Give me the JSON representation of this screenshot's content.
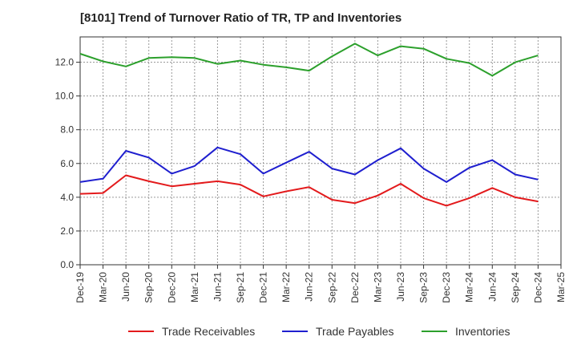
{
  "chart_data": {
    "type": "line",
    "title": "[8101]  Trend of Turnover Ratio of TR, TP and Inventories",
    "xlabel": "",
    "ylabel": "",
    "ylim": [
      0,
      13.5
    ],
    "yticks": [
      "0.0",
      "2.0",
      "4.0",
      "6.0",
      "8.0",
      "10.0",
      "12.0"
    ],
    "ytick_values": [
      0,
      2,
      4,
      6,
      8,
      10,
      12
    ],
    "categories": [
      "Dec-19",
      "Mar-20",
      "Jun-20",
      "Sep-20",
      "Dec-20",
      "Mar-21",
      "Jun-21",
      "Sep-21",
      "Dec-21",
      "Mar-22",
      "Jun-22",
      "Sep-22",
      "Dec-22",
      "Mar-23",
      "Jun-23",
      "Sep-23",
      "Dec-23",
      "Mar-24",
      "Jun-24",
      "Sep-24",
      "Dec-24",
      "Mar-25"
    ],
    "grid": true,
    "legend_position": "bottom",
    "series": [
      {
        "name": "Trade Receivables",
        "color": "#e31a1c",
        "values": [
          4.2,
          4.25,
          5.3,
          4.95,
          4.65,
          4.8,
          4.95,
          4.75,
          4.05,
          4.35,
          4.6,
          3.85,
          3.65,
          4.1,
          4.8,
          3.95,
          3.5,
          3.95,
          4.55,
          4.0,
          3.75,
          null
        ]
      },
      {
        "name": "Trade Payables",
        "color": "#1f1fcf",
        "values": [
          4.9,
          5.1,
          6.75,
          6.35,
          5.4,
          5.85,
          6.95,
          6.55,
          5.4,
          6.05,
          6.7,
          5.7,
          5.35,
          6.2,
          6.9,
          5.7,
          4.9,
          5.75,
          6.2,
          5.35,
          5.05,
          null
        ]
      },
      {
        "name": "Inventories",
        "color": "#2ca02c",
        "values": [
          12.5,
          12.05,
          11.75,
          12.25,
          12.3,
          12.25,
          11.9,
          12.1,
          11.85,
          11.7,
          11.5,
          12.35,
          13.1,
          12.4,
          12.95,
          12.8,
          12.2,
          11.95,
          11.2,
          12.0,
          12.4,
          null
        ]
      }
    ]
  }
}
